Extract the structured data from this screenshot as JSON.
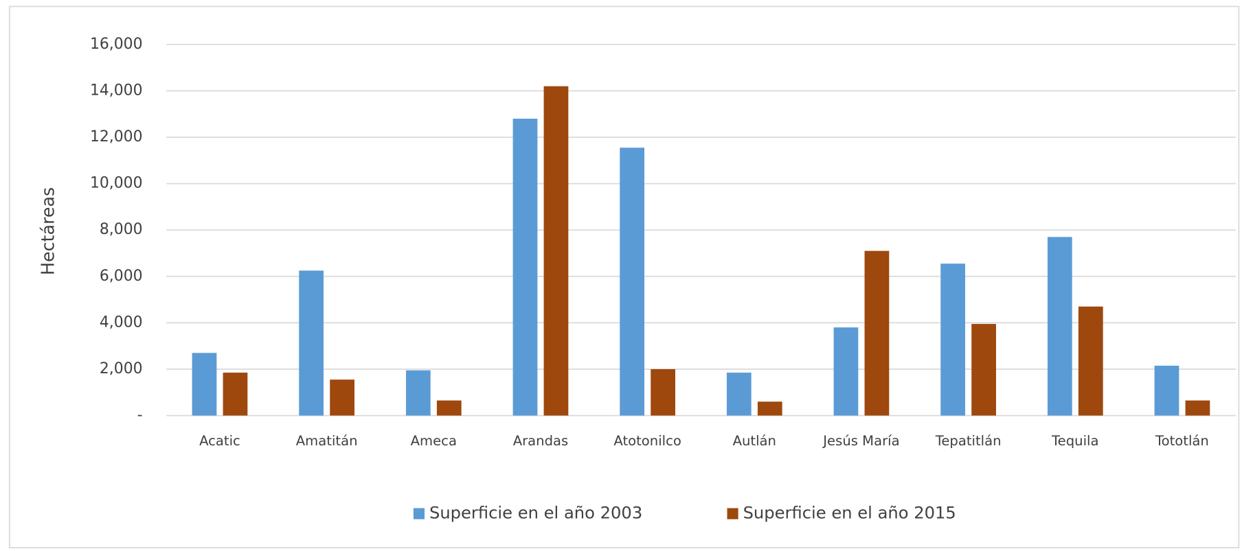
{
  "chart_data": {
    "type": "bar",
    "y_label": "Hectáreas",
    "categories": [
      "Acatic",
      "Amatitán",
      "Ameca",
      "Arandas",
      "Atotonilco",
      "Autlán",
      "Jesús María",
      "Tepatitlán",
      "Tequila",
      "Tototlán"
    ],
    "series": [
      {
        "name": "Superficie en el año 2003",
        "color": "#5b9bd5",
        "values": [
          2700,
          6250,
          1950,
          12800,
          11550,
          1850,
          3800,
          6550,
          7700,
          2150
        ]
      },
      {
        "name": "Superficie en el año 2015",
        "color": "#9e480e",
        "values": [
          1850,
          1550,
          650,
          14200,
          2000,
          600,
          7100,
          3950,
          4700,
          650
        ]
      }
    ],
    "ylim": [
      0,
      16000
    ],
    "yticks": [
      {
        "value": 0,
        "label": "-"
      },
      {
        "value": 2000,
        "label": "2,000"
      },
      {
        "value": 4000,
        "label": "4,000"
      },
      {
        "value": 6000,
        "label": "6,000"
      },
      {
        "value": 8000,
        "label": "8,000"
      },
      {
        "value": 10000,
        "label": "10,000"
      },
      {
        "value": 12000,
        "label": "12,000"
      },
      {
        "value": 14000,
        "label": "14,000"
      },
      {
        "value": 16000,
        "label": "16,000"
      }
    ],
    "grid": true,
    "legend": "bottom"
  }
}
